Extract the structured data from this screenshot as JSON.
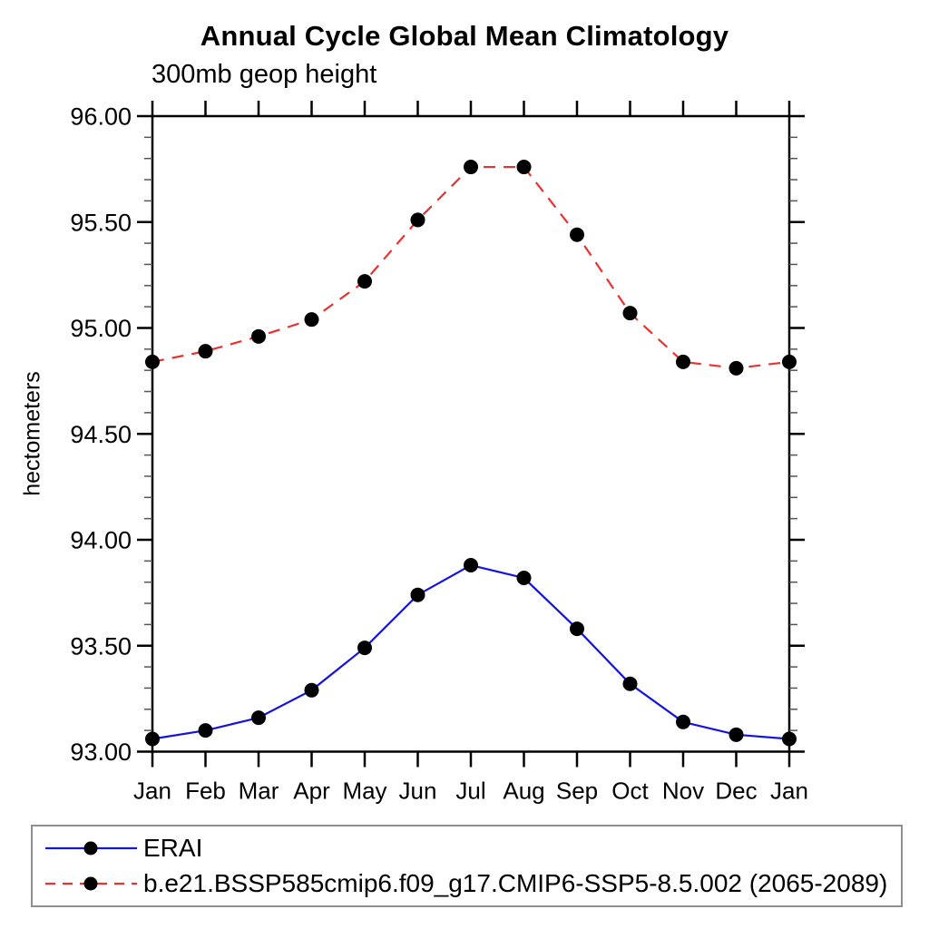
{
  "chart_data": {
    "type": "line",
    "title": "Annual Cycle Global Mean Climatology",
    "subtitle": "300mb geop height",
    "ylabel": "hectometers",
    "xlabel": "",
    "x_tick_labels": [
      "Jan",
      "Feb",
      "Mar",
      "Apr",
      "May",
      "Jun",
      "Jul",
      "Aug",
      "Sep",
      "Oct",
      "Nov",
      "Dec",
      "Jan"
    ],
    "y_ticks": [
      93.0,
      93.5,
      94.0,
      94.5,
      95.0,
      95.5,
      96.0
    ],
    "y_tick_labels": [
      "93.00",
      "93.50",
      "94.00",
      "94.50",
      "95.00",
      "95.50",
      "96.00"
    ],
    "ylim": [
      93.0,
      96.0
    ],
    "y_minor_step": 0.1,
    "grid": false,
    "legend_position": "bottom-left-box",
    "marker": {
      "shape": "circle",
      "color": "#000000"
    },
    "series": [
      {
        "name": "ERAI",
        "color": "#1414dc",
        "line_style": "solid",
        "values": [
          93.06,
          93.1,
          93.16,
          93.29,
          93.49,
          93.74,
          93.88,
          93.82,
          93.58,
          93.32,
          93.14,
          93.08,
          93.06
        ]
      },
      {
        "name": "b.e21.BSSP585cmip6.f09_g17.CMIP6-SSP5-8.5.002 (2065-2089)",
        "color": "#e63232",
        "line_style": "dashed",
        "values": [
          94.84,
          94.89,
          94.96,
          95.04,
          95.22,
          95.51,
          95.76,
          95.76,
          95.44,
          95.07,
          94.84,
          94.81,
          94.84
        ]
      }
    ]
  }
}
